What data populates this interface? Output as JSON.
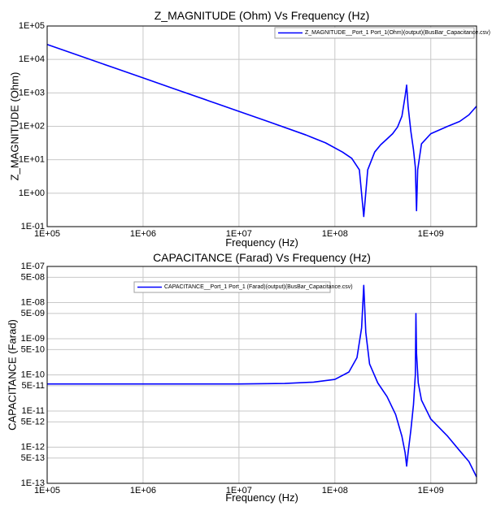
{
  "chart_data": [
    {
      "type": "line",
      "title": "Z_MAGNITUDE (Ohm) Vs Frequency (Hz)",
      "xlabel": "Frequency (Hz)",
      "ylabel": "Z_MAGNITUDE (Ohm)",
      "x_scale": "log",
      "y_scale": "log",
      "xlim": [
        100000,
        3000000000
      ],
      "ylim": [
        0.1,
        100000
      ],
      "x_ticks": [
        "1E+05",
        "1E+06",
        "1E+07",
        "1E+08",
        "1E+09"
      ],
      "x_tick_values": [
        100000,
        1000000,
        10000000,
        100000000,
        1000000000
      ],
      "y_ticks": [
        "1E-01",
        "1E+00",
        "1E+01",
        "1E+02",
        "1E+03",
        "1E+04",
        "1E+05"
      ],
      "y_tick_values": [
        0.1,
        1,
        10,
        100,
        1000,
        10000,
        100000
      ],
      "grid": true,
      "legend_position": "top-right",
      "series": [
        {
          "name": "Z_MAGNITUDE__Port_1 Port_1(Ohm)(output)(BusBar_Capacitance.csv)",
          "color": "#0000ff",
          "x": [
            100000,
            200000,
            500000,
            1000000,
            2000000,
            5000000,
            10000000,
            20000000,
            50000000,
            80000000,
            120000000,
            150000000,
            180000000,
            200000000,
            220000000,
            260000000,
            300000000,
            350000000,
            400000000,
            450000000,
            500000000,
            540000000,
            560000000,
            580000000,
            620000000,
            660000000,
            690000000,
            710000000,
            730000000,
            800000000,
            1000000000,
            1500000000,
            2000000000,
            2500000000,
            3000000000
          ],
          "values": [
            28000,
            14000,
            5600,
            2800,
            1400,
            560,
            280,
            140,
            55,
            32,
            17,
            11,
            5,
            0.2,
            5,
            17,
            28,
            42,
            60,
            95,
            200,
            800,
            1700,
            400,
            70,
            20,
            6,
            0.3,
            5,
            30,
            60,
            100,
            140,
            220,
            400
          ]
        }
      ]
    },
    {
      "type": "line",
      "title": "CAPACITANCE (Farad) Vs Frequency (Hz)",
      "xlabel": "Frequency (Hz)",
      "ylabel": "CAPACITANCE (Farad)",
      "x_scale": "log",
      "y_scale": "log",
      "xlim": [
        100000,
        3000000000
      ],
      "ylim": [
        1e-13,
        1e-07
      ],
      "x_ticks": [
        "1E+05",
        "1E+06",
        "1E+07",
        "1E+08",
        "1E+09"
      ],
      "x_tick_values": [
        100000,
        1000000,
        10000000,
        100000000,
        1000000000
      ],
      "y_ticks": [
        "1E-13",
        "5E-13",
        "1E-12",
        "5E-12",
        "1E-11",
        "5E-11",
        "1E-10",
        "5E-10",
        "1E-09",
        "5E-09",
        "1E-08",
        "5E-08",
        "1E-07"
      ],
      "y_tick_values": [
        1e-13,
        5e-13,
        1e-12,
        5e-12,
        1e-11,
        5e-11,
        1e-10,
        5e-10,
        1e-09,
        5e-09,
        1e-08,
        5e-08,
        1e-07
      ],
      "grid": true,
      "legend_position": "top-left",
      "series": [
        {
          "name": "CAPACITANCE__Port_1 Port_1 (Farad)(output)(BusBar_Capacitance.csv)",
          "color": "#0000ff",
          "x": [
            100000,
            1000000,
            10000000,
            30000000,
            60000000,
            100000000,
            140000000,
            170000000,
            190000000,
            200000000,
            210000000,
            230000000,
            280000000,
            350000000,
            430000000,
            500000000,
            540000000,
            560000000,
            580000000,
            620000000,
            660000000,
            690000000,
            700000000,
            710000000,
            740000000,
            800000000,
            1000000000,
            1500000000,
            2000000000,
            2500000000,
            3000000000
          ],
          "values": [
            5.6e-11,
            5.6e-11,
            5.6e-11,
            5.8e-11,
            6.3e-11,
            7.5e-11,
            1.2e-10,
            3e-10,
            2e-09,
            3e-08,
            1.5e-09,
            2e-10,
            6e-11,
            2.5e-11,
            8e-12,
            2e-12,
            7e-13,
            3e-13,
            7e-13,
            3e-12,
            1.5e-11,
            1e-10,
            5e-09,
            4e-10,
            6e-11,
            2e-11,
            6e-12,
            2e-12,
            8e-13,
            4e-13,
            1.5e-13
          ]
        }
      ]
    }
  ]
}
